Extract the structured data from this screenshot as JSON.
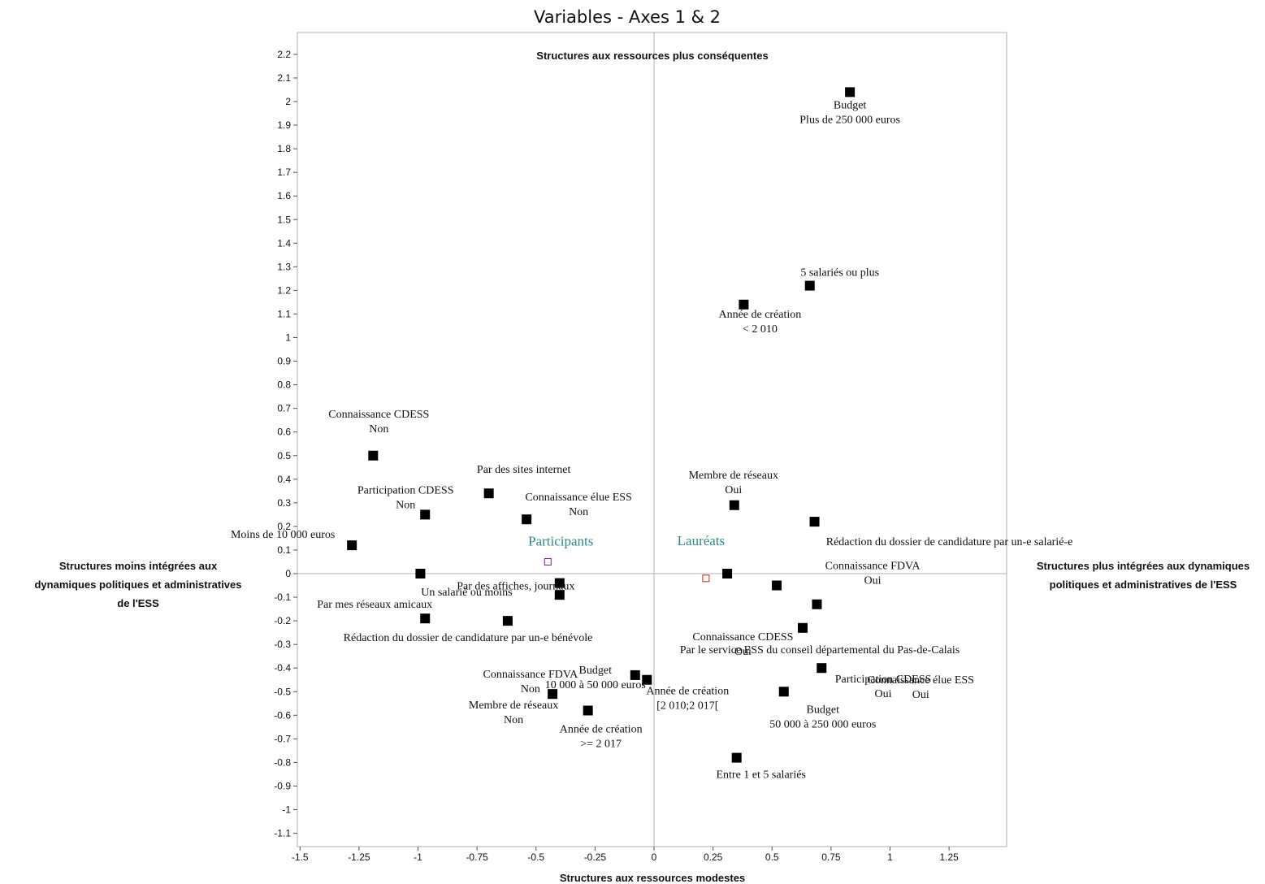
{
  "chart_data": {
    "type": "scatter",
    "title": "Variables - Axes 1 & 2",
    "xlim": [
      -1.5,
      1.5
    ],
    "ylim": [
      -1.15,
      2.3
    ],
    "xticks": [
      "-1.5",
      "-1.25",
      "-1",
      "-0.75",
      "-0.5",
      "-0.25",
      "0",
      "0.25",
      "0.5",
      "0.75",
      "1",
      "1.25"
    ],
    "yticks": [
      "-1.1",
      "-1",
      "-0.9",
      "-0.8",
      "-0.7",
      "-0.6",
      "-0.5",
      "-0.4",
      "-0.3",
      "-0.2",
      "-0.1",
      "0",
      "0.1",
      "0.2",
      "0.3",
      "0.4",
      "0.5",
      "0.6",
      "0.7",
      "0.8",
      "0.9",
      "1",
      "1.1",
      "1.2",
      "1.3",
      "1.4",
      "1.5",
      "1.6",
      "1.7",
      "1.8",
      "1.9",
      "2",
      "2.1",
      "2.2"
    ],
    "grid": false,
    "axis_captions": {
      "top": "Structures aux ressources plus conséquentes",
      "bottom": "Structures aux ressources modestes",
      "left": [
        "Structures moins intégrées aux",
        "dynamiques politiques et administratives",
        "de l'ESS"
      ],
      "right": [
        "Structures plus intégrées aux dynamiques",
        "politiques et administratives de l'ESS"
      ]
    },
    "points": [
      {
        "x": 0.83,
        "y": 2.04,
        "label": [
          "Budget",
          "Plus de 250 000 euros"
        ]
      },
      {
        "x": 0.66,
        "y": 1.22,
        "label": [
          "5 salariés ou plus"
        ]
      },
      {
        "x": 0.38,
        "y": 1.14,
        "label": [
          "Année de création",
          "< 2 010"
        ]
      },
      {
        "x": -1.19,
        "y": 0.5,
        "label": [
          "Connaissance CDESS",
          "Non"
        ]
      },
      {
        "x": -0.7,
        "y": 0.34,
        "label": [
          "Par des sites internet"
        ]
      },
      {
        "x": -0.97,
        "y": 0.25,
        "label": [
          "Participation CDESS",
          "Non"
        ]
      },
      {
        "x": -0.54,
        "y": 0.23,
        "label": [
          "Connaissance élue ESS",
          "Non"
        ]
      },
      {
        "x": 0.34,
        "y": 0.29,
        "label": [
          "Membre de réseaux",
          "Oui"
        ]
      },
      {
        "x": 0.68,
        "y": 0.22,
        "label": [
          "Rédaction du dossier de candidature par un-e salarié-e"
        ]
      },
      {
        "x": -1.28,
        "y": 0.12,
        "label": [
          "Moins de 10 000 euros"
        ]
      },
      {
        "x": -0.99,
        "y": 0.0,
        "label": [
          "Un salarié ou moins"
        ]
      },
      {
        "x": -0.4,
        "y": -0.04,
        "label": [
          "Par des affiches, journaux"
        ]
      },
      {
        "x": 0.31,
        "y": 0.0,
        "label": []
      },
      {
        "x": 0.52,
        "y": -0.05,
        "label": [
          "Connaissance FDVA",
          "Oui"
        ]
      },
      {
        "x": -0.4,
        "y": -0.09,
        "label": []
      },
      {
        "x": 0.69,
        "y": -0.13,
        "label": [
          "Connaissance CDESS",
          "Oui"
        ]
      },
      {
        "x": -0.97,
        "y": -0.19,
        "label": [
          "Par mes réseaux amicaux"
        ]
      },
      {
        "x": -0.62,
        "y": -0.2,
        "label": [
          "Connaissance FDVA",
          "Non"
        ]
      },
      {
        "x": 0.63,
        "y": -0.23,
        "label": [
          "Participation CDESS",
          "Oui"
        ]
      },
      {
        "x": 0.71,
        "y": -0.4,
        "label": [
          "Connaissance élue ESS",
          "Oui"
        ]
      },
      {
        "x": -0.08,
        "y": -0.43,
        "label": [
          "Budget",
          "10 000 à 50 000 euros"
        ]
      },
      {
        "x": -0.03,
        "y": -0.45,
        "label": [
          "Année de création",
          "[2 010;2 017["
        ]
      },
      {
        "x": -0.43,
        "y": -0.51,
        "label": [
          "Membre de réseaux",
          "Non"
        ]
      },
      {
        "x": 0.55,
        "y": -0.5,
        "label": [
          "Budget",
          "50 000 à 250 000 euros"
        ]
      },
      {
        "x": -0.28,
        "y": -0.58,
        "label": [
          "Année de création",
          ">= 2 017"
        ]
      },
      {
        "x": 0.35,
        "y": -0.78,
        "label": [
          "Entre 1 et 5 salariés"
        ]
      }
    ],
    "extra_labels": [
      "Rédaction du dossier de candidature par un-e bénévole",
      "Par le service ESS du conseil départemental du Pas-de-Calais"
    ],
    "supplementary": [
      {
        "x": -0.45,
        "y": 0.05,
        "label": "Participants",
        "color": "#8b1a8b"
      },
      {
        "x": 0.22,
        "y": -0.02,
        "label": "Lauréats",
        "color": "#cc2222"
      }
    ],
    "colors": {
      "point": "#000000",
      "supplementary_label": "#2a8a8a",
      "axis": "#b0b0b0"
    }
  }
}
